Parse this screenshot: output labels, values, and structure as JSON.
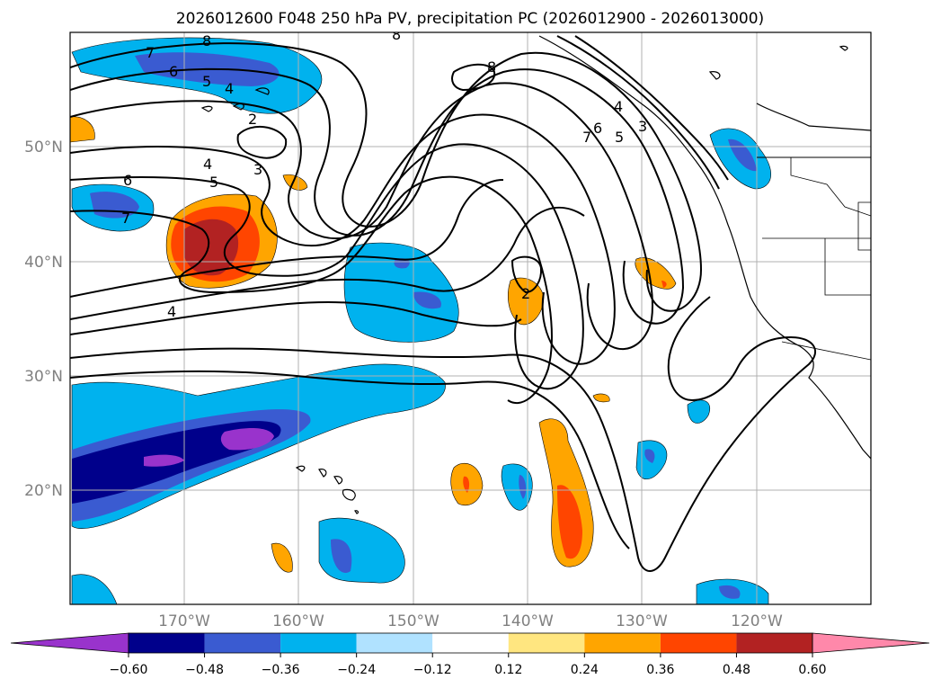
{
  "title": "2026012600 F048 250 hPa PV, precipitation PC (2026012900 - 2026013000)",
  "colors": {
    "axis_label": "#808080",
    "frame": "#000000",
    "grid": "#b0b0b0",
    "pv_contour": "#000000",
    "bins": [
      "#9933cc",
      "#00008b",
      "#3a5bd1",
      "#00b2ee",
      "#b0e2ff",
      "#ffffff",
      "#ffe680",
      "#ffa500",
      "#ff4500",
      "#b22222",
      "#ff88aa"
    ]
  },
  "lat_labels": [
    "50°N",
    "40°N",
    "30°N",
    "20°N"
  ],
  "lon_labels": [
    "170°W",
    "160°W",
    "150°W",
    "140°W",
    "130°W",
    "120°W"
  ],
  "colorbar": {
    "ticks": [
      "−0.60",
      "−0.48",
      "−0.36",
      "−0.24",
      "−0.12",
      "0.12",
      "0.24",
      "0.36",
      "0.48",
      "0.60"
    ],
    "extend": "both"
  },
  "contour_labels": [
    "8",
    "7",
    "6",
    "5",
    "4",
    "2",
    "3",
    "4",
    "5",
    "6",
    "7",
    "8",
    "4",
    "2",
    "3",
    "4",
    "5",
    "6",
    "7",
    "8"
  ]
}
